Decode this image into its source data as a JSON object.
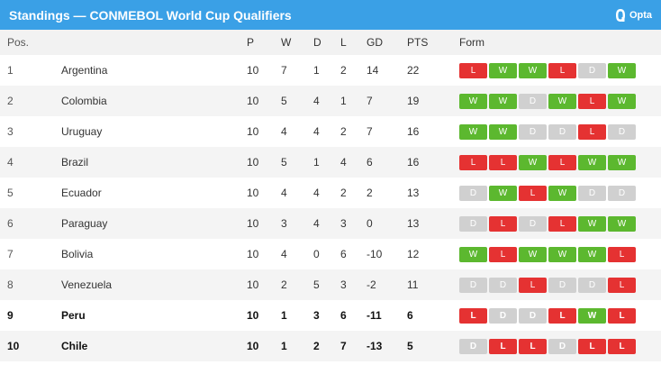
{
  "title": "Standings — CONMEBOL World Cup Qualifiers",
  "brand": "Opta",
  "colors": {
    "header_bg": "#3aa0e6",
    "win": "#5cb82f",
    "loss": "#e53232",
    "draw": "#d0d0d0"
  },
  "columns": {
    "pos": "Pos.",
    "p": "P",
    "w": "W",
    "d": "D",
    "l": "L",
    "gd": "GD",
    "pts": "PTS",
    "form": "Form"
  },
  "rows": [
    {
      "pos": "1",
      "team": "Argentina",
      "p": "10",
      "w": "7",
      "d": "1",
      "l": "2",
      "gd": "14",
      "pts": "22",
      "bold": false,
      "form": [
        "L",
        "W",
        "W",
        "L",
        "D",
        "W"
      ]
    },
    {
      "pos": "2",
      "team": "Colombia",
      "p": "10",
      "w": "5",
      "d": "4",
      "l": "1",
      "gd": "7",
      "pts": "19",
      "bold": false,
      "form": [
        "W",
        "W",
        "D",
        "W",
        "L",
        "W"
      ]
    },
    {
      "pos": "3",
      "team": "Uruguay",
      "p": "10",
      "w": "4",
      "d": "4",
      "l": "2",
      "gd": "7",
      "pts": "16",
      "bold": false,
      "form": [
        "W",
        "W",
        "D",
        "D",
        "L",
        "D"
      ]
    },
    {
      "pos": "4",
      "team": "Brazil",
      "p": "10",
      "w": "5",
      "d": "1",
      "l": "4",
      "gd": "6",
      "pts": "16",
      "bold": false,
      "form": [
        "L",
        "L",
        "W",
        "L",
        "W",
        "W"
      ]
    },
    {
      "pos": "5",
      "team": "Ecuador",
      "p": "10",
      "w": "4",
      "d": "4",
      "l": "2",
      "gd": "2",
      "pts": "13",
      "bold": false,
      "form": [
        "D",
        "W",
        "L",
        "W",
        "D",
        "D"
      ]
    },
    {
      "pos": "6",
      "team": "Paraguay",
      "p": "10",
      "w": "3",
      "d": "4",
      "l": "3",
      "gd": "0",
      "pts": "13",
      "bold": false,
      "form": [
        "D",
        "L",
        "D",
        "L",
        "W",
        "W"
      ]
    },
    {
      "pos": "7",
      "team": "Bolivia",
      "p": "10",
      "w": "4",
      "d": "0",
      "l": "6",
      "gd": "-10",
      "pts": "12",
      "bold": false,
      "form": [
        "W",
        "L",
        "W",
        "W",
        "W",
        "L"
      ]
    },
    {
      "pos": "8",
      "team": "Venezuela",
      "p": "10",
      "w": "2",
      "d": "5",
      "l": "3",
      "gd": "-2",
      "pts": "11",
      "bold": false,
      "form": [
        "D",
        "D",
        "L",
        "D",
        "D",
        "L"
      ]
    },
    {
      "pos": "9",
      "team": "Peru",
      "p": "10",
      "w": "1",
      "d": "3",
      "l": "6",
      "gd": "-11",
      "pts": "6",
      "bold": true,
      "form": [
        "L",
        "D",
        "D",
        "L",
        "W",
        "L"
      ]
    },
    {
      "pos": "10",
      "team": "Chile",
      "p": "10",
      "w": "1",
      "d": "2",
      "l": "7",
      "gd": "-13",
      "pts": "5",
      "bold": true,
      "form": [
        "D",
        "L",
        "L",
        "D",
        "L",
        "L"
      ]
    }
  ]
}
